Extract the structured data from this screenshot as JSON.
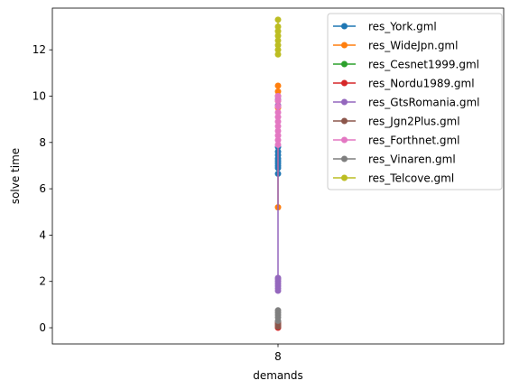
{
  "chart_data": {
    "type": "line",
    "title": "",
    "xlabel": "demands",
    "ylabel": "solve time",
    "x_categories": [
      "8"
    ],
    "ylim": [
      -0.7,
      13.8
    ],
    "yticks": [
      0,
      2,
      4,
      6,
      8,
      10,
      12
    ],
    "legend": "top-right",
    "grid": false,
    "series": [
      {
        "name": "res_York.gml",
        "color": "#1f77b4",
        "x": "8",
        "y": [
          6.65,
          6.9,
          7.0,
          7.1,
          7.2,
          7.3,
          7.45,
          7.6,
          7.8
        ]
      },
      {
        "name": "res_WideJpn.gml",
        "color": "#ff7f0e",
        "x": "8",
        "y": [
          5.2,
          9.5,
          9.8,
          10.0,
          10.2,
          10.45
        ]
      },
      {
        "name": "res_Cesnet1999.gml",
        "color": "#2ca02c",
        "x": "8",
        "y": [
          0.02,
          0.05,
          0.08
        ]
      },
      {
        "name": "res_Nordu1989.gml",
        "color": "#d62728",
        "x": "8",
        "y": [
          0.0,
          0.05,
          0.1,
          0.15,
          0.2
        ]
      },
      {
        "name": "res_GtsRomania.gml",
        "color": "#9467bd",
        "x": "8",
        "y": [
          1.6,
          1.7,
          1.8,
          1.9,
          2.0,
          2.1,
          2.15,
          9.6,
          9.85,
          10.0
        ]
      },
      {
        "name": "res_Jgn2Plus.gml",
        "color": "#8c564b",
        "x": "8",
        "y": [
          0.05,
          0.15,
          0.25
        ]
      },
      {
        "name": "res_Forthnet.gml",
        "color": "#e377c2",
        "x": "8",
        "y": [
          7.9,
          8.1,
          8.3,
          8.5,
          8.7,
          8.9,
          9.1,
          9.3,
          9.55,
          9.8,
          10.0
        ]
      },
      {
        "name": "res_Vinaren.gml",
        "color": "#7f7f7f",
        "x": "8",
        "y": [
          0.3,
          0.45,
          0.55,
          0.65,
          0.75
        ]
      },
      {
        "name": "res_Telcove.gml",
        "color": "#bcbd22",
        "x": "8",
        "y": [
          11.8,
          12.0,
          12.2,
          12.4,
          12.6,
          12.8,
          13.0,
          13.3
        ]
      }
    ]
  }
}
